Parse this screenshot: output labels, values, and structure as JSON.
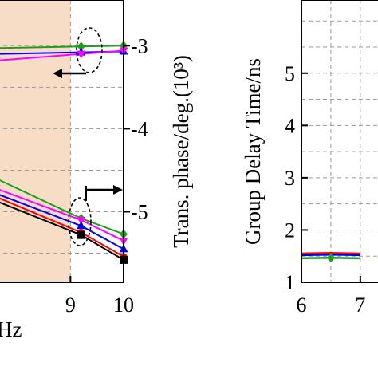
{
  "chart_data": [
    {
      "type": "line",
      "xlabel": "Hz",
      "ylabel": "Trans. phase/deg.(10³)",
      "xlim": [
        7.6,
        10
      ],
      "ylim": [
        -5.85,
        -2.45
      ],
      "x_ticks": [
        "9",
        "10"
      ],
      "y_ticks": [
        "-3",
        "-4",
        "-5"
      ],
      "grid": true,
      "shaded_band": {
        "from": 7.6,
        "to": 9.0,
        "color": "#f7dcc6"
      },
      "series_upper": [
        {
          "color": "#1aa01a",
          "marker": "diamond",
          "x": [
            7.6,
            9.2,
            10.0
          ],
          "y": [
            -3.03,
            -3.01,
            -3.0
          ]
        },
        {
          "color": "#0000ff",
          "marker": "triangle",
          "x": [
            7.6,
            9.2,
            10.0
          ],
          "y": [
            -3.1,
            -3.08,
            -3.07
          ]
        },
        {
          "color": "#ff00ff",
          "marker": "triangle-down",
          "x": [
            7.6,
            9.2,
            10.0
          ],
          "y": [
            -3.18,
            -3.1,
            -3.06
          ]
        }
      ],
      "series_lower": [
        {
          "color": "#1aa01a",
          "marker": "diamond",
          "x": [
            7.6,
            9.2,
            10.0
          ],
          "y": [
            -4.6,
            -5.08,
            -5.27
          ]
        },
        {
          "color": "#ff00ff",
          "marker": "triangle-down",
          "x": [
            7.6,
            9.2,
            10.0
          ],
          "y": [
            -4.72,
            -5.1,
            -5.35
          ]
        },
        {
          "color": "#0000ff",
          "marker": "triangle",
          "x": [
            7.6,
            9.2,
            10.0
          ],
          "y": [
            -4.78,
            -5.17,
            -5.45
          ]
        },
        {
          "color": "#ff0000",
          "marker": "circle",
          "x": [
            7.6,
            9.2,
            10.0
          ],
          "y": [
            -4.82,
            -5.25,
            -5.54
          ]
        },
        {
          "color": "#000000",
          "marker": "square",
          "x": [
            7.6,
            9.2,
            10.0
          ],
          "y": [
            -4.87,
            -5.28,
            -5.58
          ]
        }
      ],
      "annotations": [
        "dashed ellipse with left arrow (upper group)",
        "dashed ellipse with right arrow (lower group)"
      ]
    },
    {
      "type": "line",
      "ylabel": "Group Delay Time/ns",
      "xlim": [
        6,
        7.3
      ],
      "ylim": [
        1,
        6.4
      ],
      "x_ticks": [
        "6",
        "7"
      ],
      "y_ticks": [
        "1",
        "2",
        "3",
        "4",
        "5"
      ],
      "grid": true,
      "series": [
        {
          "color": "#ff0000",
          "x": [
            6.0,
            6.5,
            7.0
          ],
          "y": [
            1.55,
            1.56,
            1.55
          ]
        },
        {
          "color": "#0000ff",
          "x": [
            6.0,
            6.5,
            7.0
          ],
          "y": [
            1.52,
            1.53,
            1.52
          ]
        },
        {
          "color": "#1aa01a",
          "marker": "diamond",
          "x": [
            6.0,
            6.5,
            7.0
          ],
          "y": [
            1.46,
            1.47,
            1.46
          ]
        }
      ]
    }
  ]
}
